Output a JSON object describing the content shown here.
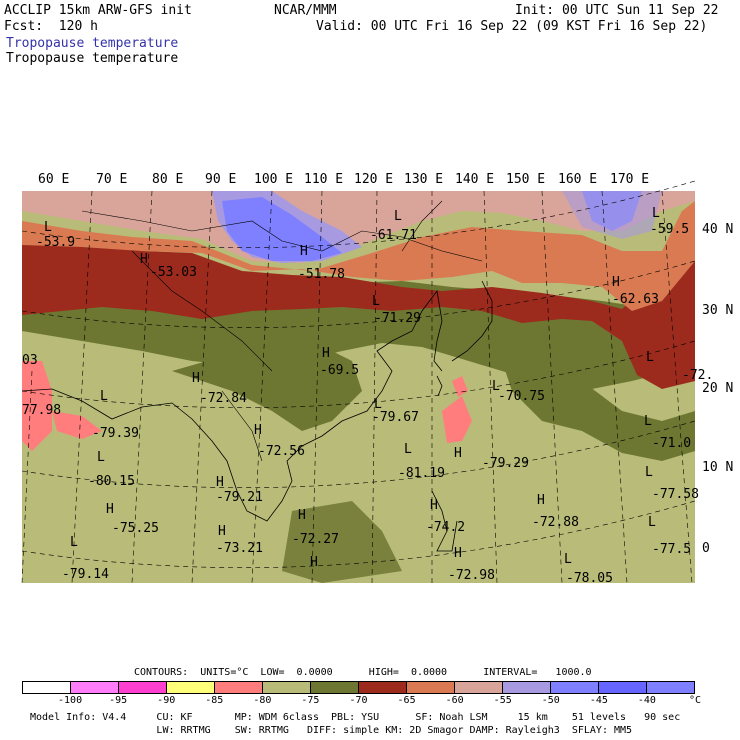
{
  "header": {
    "model": "ACCLIP 15km ARW-GFS init",
    "fcst": "Fcst:  120 h",
    "org": "NCAR/MMM",
    "init": "Init: 00 UTC Sun 11 Sep 22",
    "valid": "Valid: 00 UTC Fri 16 Sep 22 (09 KST Fri 16 Sep 22)",
    "field_colored": "Tropopause temperature",
    "field_contour": "Tropopause temperature",
    "field_colored_color": "#3333aa"
  },
  "lon_labels": [
    "60 E",
    "70 E",
    "80 E",
    "90 E",
    "100 E",
    "110 E",
    "120 E",
    "130 E",
    "140 E",
    "150 E",
    "160 E",
    "170 E"
  ],
  "lat_labels": [
    "40 N",
    "30 N",
    "20 N",
    "10 N",
    "0"
  ],
  "map_labels": [
    {
      "t": "L"
    },
    {
      "t": "-53.9"
    },
    {
      "t": "H"
    },
    {
      "t": "-53.03"
    },
    {
      "t": "H"
    },
    {
      "t": "-51.78"
    },
    {
      "t": "L"
    },
    {
      "t": "-61.71"
    },
    {
      "t": "L"
    },
    {
      "t": "-59.5"
    },
    {
      "t": "H"
    },
    {
      "t": "-62.63"
    },
    {
      "t": "L"
    },
    {
      "t": "-71.29"
    },
    {
      "t": "H"
    },
    {
      "t": "-69.5"
    },
    {
      "t": "L"
    },
    {
      "t": "-72."
    },
    {
      "t": "03"
    },
    {
      "t": "77.98"
    },
    {
      "t": "L"
    },
    {
      "t": "-79.39"
    },
    {
      "t": "H"
    },
    {
      "t": "-72.84"
    },
    {
      "t": "L"
    },
    {
      "t": "-79.67"
    },
    {
      "t": "L"
    },
    {
      "t": "-70.75"
    },
    {
      "t": "L"
    },
    {
      "t": "-71.0"
    },
    {
      "t": "L"
    },
    {
      "t": "-80.15"
    },
    {
      "t": "H"
    },
    {
      "t": "-72.56"
    },
    {
      "t": "L"
    },
    {
      "t": "-81.19"
    },
    {
      "t": "H"
    },
    {
      "t": "-79.29"
    },
    {
      "t": "L"
    },
    {
      "t": "-77.58"
    },
    {
      "t": "H"
    },
    {
      "t": "-79.21"
    },
    {
      "t": "H"
    },
    {
      "t": "-75.25"
    },
    {
      "t": "H"
    },
    {
      "t": "-74.2"
    },
    {
      "t": "H"
    },
    {
      "t": "-72.88"
    },
    {
      "t": "L"
    },
    {
      "t": "-77.5"
    },
    {
      "t": "H"
    },
    {
      "t": "-73.21"
    },
    {
      "t": "H"
    },
    {
      "t": "-72.27"
    },
    {
      "t": "L"
    },
    {
      "t": "-79.14"
    },
    {
      "t": "H"
    },
    {
      "t": "-72.98"
    },
    {
      "t": "L"
    },
    {
      "t": "-78.05"
    },
    {
      "t": "H"
    }
  ],
  "contours_line": "CONTOURS:  UNITS=°C  LOW=  0.0000      HIGH=  0.0000      INTERVAL=   1000.0",
  "colorbar": {
    "colors": [
      "#ffffff",
      "#ff7df9",
      "#ff3fd0",
      "#ffff7a",
      "#ff7d7d",
      "#b8bc78",
      "#6d7732",
      "#9c2b1e",
      "#d97a52",
      "#d9a59a",
      "#a79ae0",
      "#7f80ff",
      "#6665ff",
      "#7f80ff"
    ],
    "ticks": [
      "-100",
      "-95",
      "-90",
      "-85",
      "-80",
      "-75",
      "-70",
      "-65",
      "-60",
      "-55",
      "-50",
      "-45",
      "-40",
      "°C"
    ]
  },
  "model_info_1": "Model Info: V4.4     CU: KF       MP: WDM 6class  PBL: YSU      SF: Noah LSM     15 km    51 levels   90 sec",
  "model_info_2": "                     LW: RRTMG    SW: RRTMG   DIFF: simple KM: 2D Smagor DAMP: Rayleigh3  SFLAY: MM5"
}
